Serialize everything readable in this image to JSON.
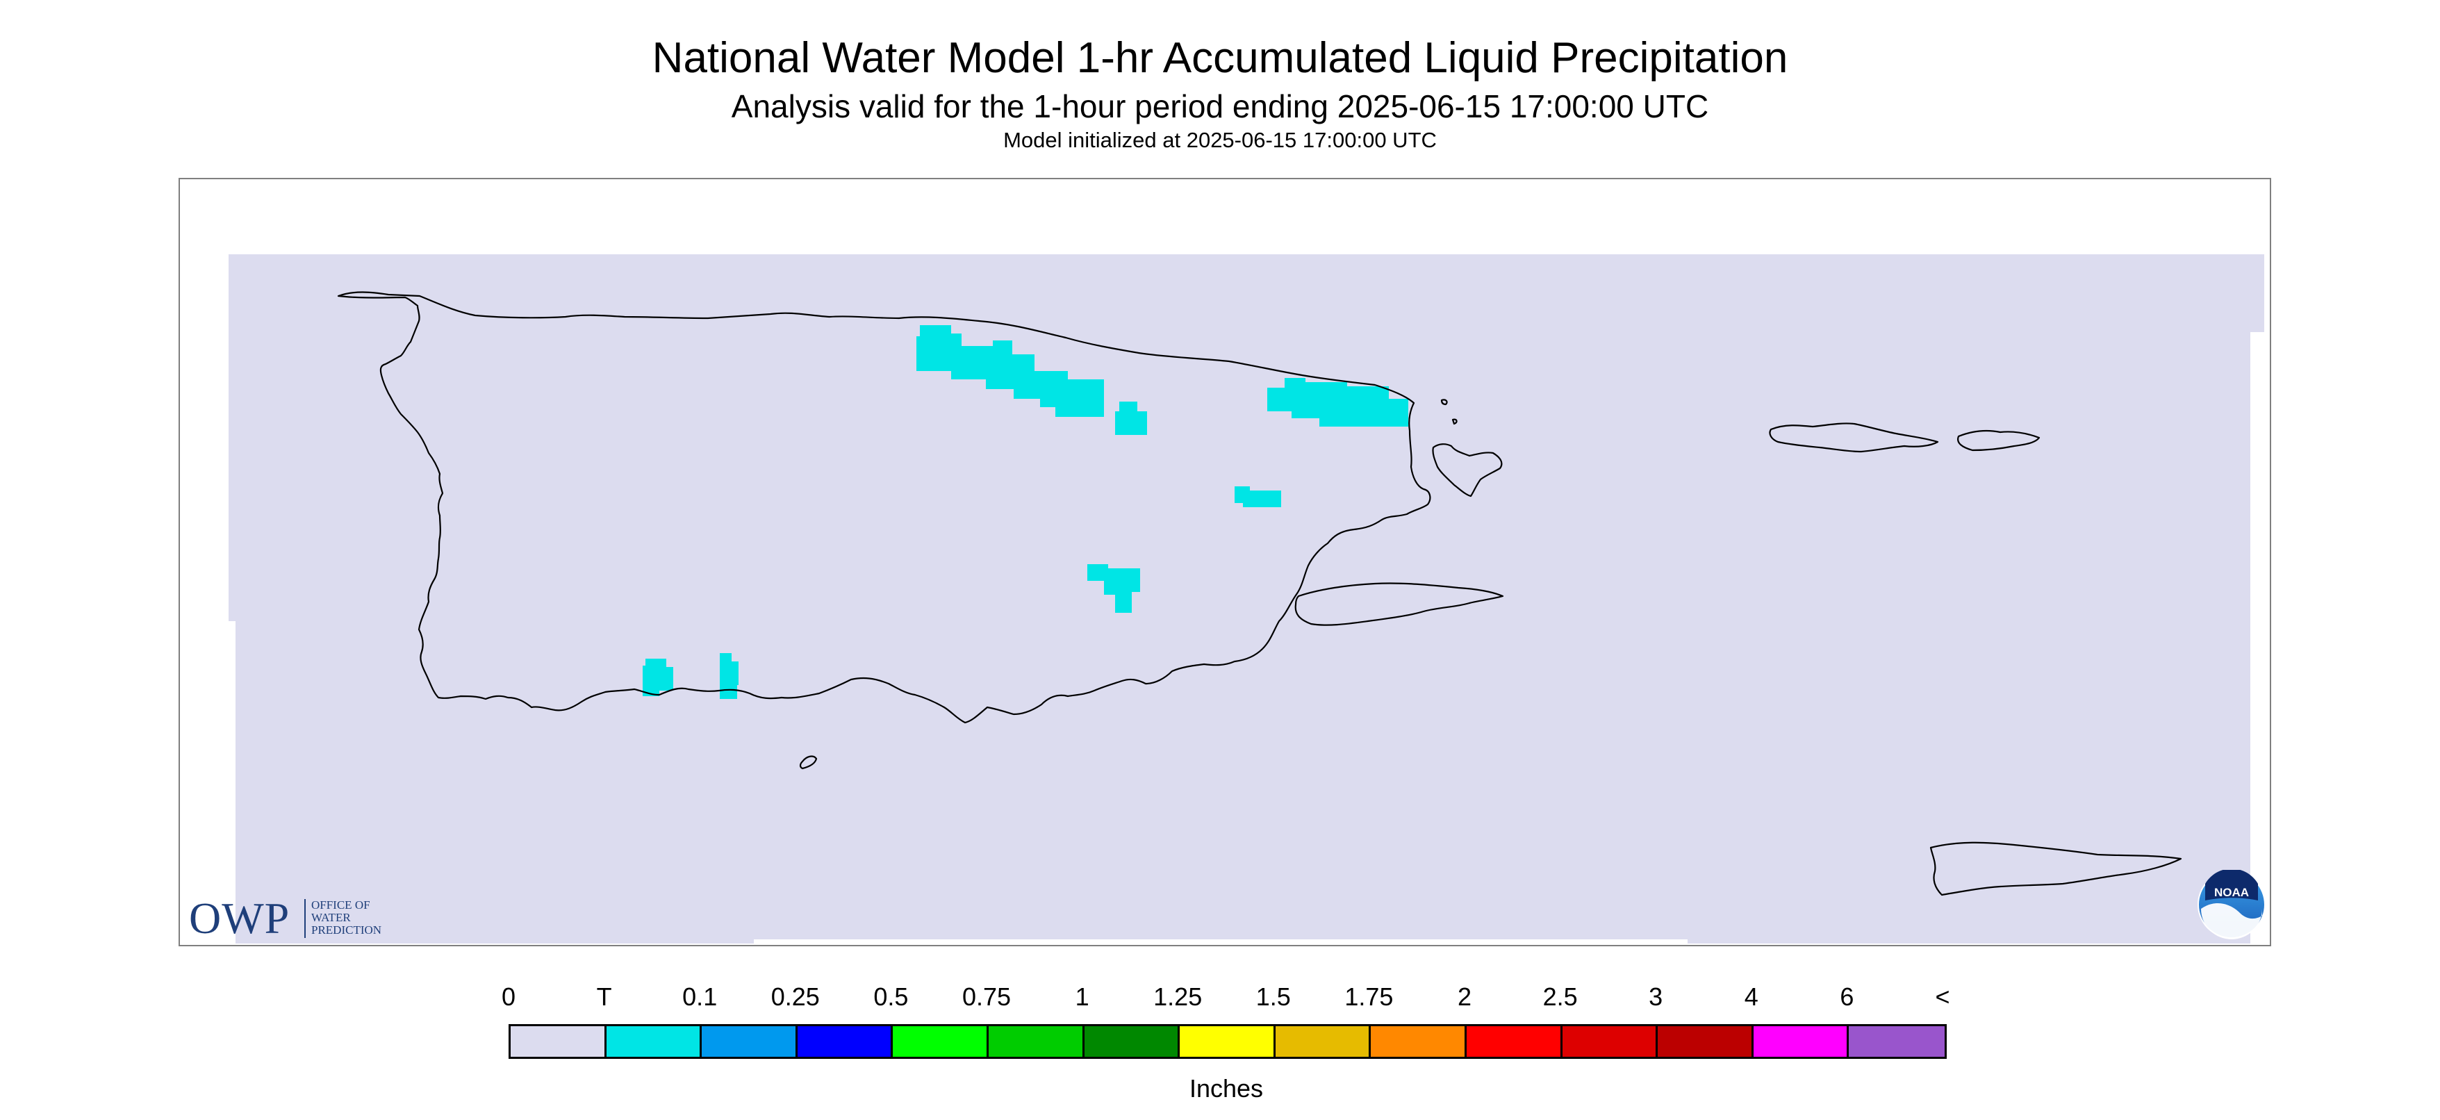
{
  "title": "National Water Model 1-hr Accumulated Liquid Precipitation",
  "subtitle": "Analysis valid for the 1-hour period ending 2025-06-15 17:00:00 UTC",
  "initialized": "Model initialized at 2025-06-15 17:00:00 UTC",
  "map": {
    "region_fill": "#dcdcef",
    "outline_color": "#000000",
    "trace_color": "#00e5e5"
  },
  "logos": {
    "owp": {
      "letters": "OWP",
      "line1": "OFFICE OF",
      "line2": "WATER",
      "line3": "PREDICTION"
    },
    "noaa": {
      "text": "NOAA"
    }
  },
  "legend": {
    "ticks": [
      "0",
      "T",
      "0.1",
      "0.25",
      "0.5",
      "0.75",
      "1",
      "1.25",
      "1.5",
      "1.75",
      "2",
      "2.5",
      "3",
      "4",
      "6",
      "<"
    ],
    "colors": [
      "#dcdcef",
      "#00e5e5",
      "#0099ee",
      "#0000ff",
      "#00ff00",
      "#00cc00",
      "#008800",
      "#ffff00",
      "#e6bb00",
      "#ff8800",
      "#ff0000",
      "#dd0000",
      "#bb0000",
      "#ff00ff",
      "#9955cc"
    ],
    "unit": "Inches"
  }
}
